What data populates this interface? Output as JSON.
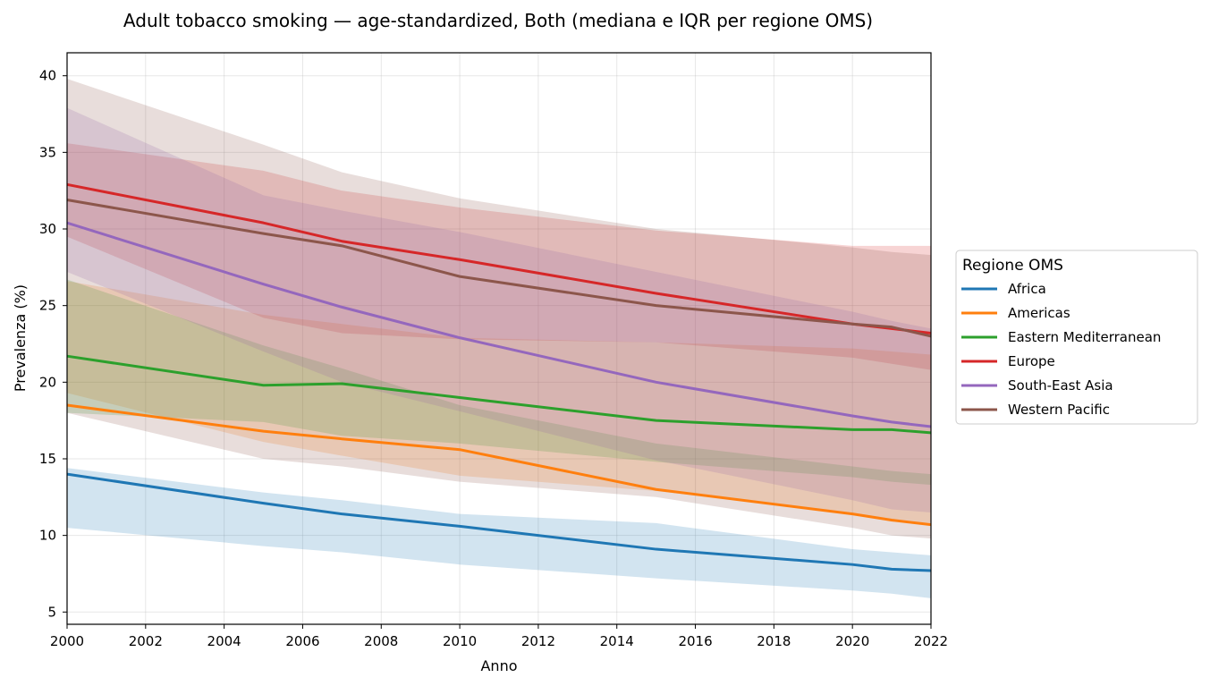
{
  "chart_data": {
    "type": "line",
    "title": "Adult tobacco smoking — age-standardized, Both (mediana e IQR per regione OMS)",
    "xlabel": "Anno",
    "ylabel": "Prevalenza (%)",
    "xlim": [
      2000,
      2022
    ],
    "ylim": [
      4.2,
      41.5
    ],
    "x_ticks": [
      "2000",
      "2002",
      "2004",
      "2006",
      "2008",
      "2010",
      "2012",
      "2014",
      "2016",
      "2018",
      "2020",
      "2022"
    ],
    "y_ticks": [
      "5",
      "10",
      "15",
      "20",
      "25",
      "30",
      "35",
      "40"
    ],
    "grid": true,
    "legend": {
      "title": "Regione OMS",
      "position": "right"
    },
    "x": [
      2000,
      2005,
      2007,
      2010,
      2015,
      2020,
      2021,
      2022
    ],
    "series": [
      {
        "name": "Africa",
        "color": "#1f77b4",
        "median": [
          14.0,
          12.1,
          11.4,
          10.6,
          9.1,
          8.1,
          7.8,
          7.7
        ],
        "q1": [
          10.5,
          9.3,
          8.9,
          8.1,
          7.2,
          6.4,
          6.2,
          5.9
        ],
        "q3": [
          14.4,
          12.8,
          12.3,
          11.4,
          10.8,
          9.1,
          8.9,
          8.7
        ]
      },
      {
        "name": "Americas",
        "color": "#ff7f0e",
        "median": [
          18.5,
          16.8,
          16.3,
          15.6,
          13.0,
          11.4,
          11.0,
          10.7
        ],
        "q1": [
          19.3,
          16.1,
          15.2,
          13.9,
          12.9,
          11.4,
          10.9,
          10.8
        ],
        "q3": [
          26.6,
          24.4,
          23.8,
          22.9,
          22.6,
          22.2,
          22.0,
          21.8
        ]
      },
      {
        "name": "Eastern Mediterranean",
        "color": "#2ca02c",
        "median": [
          21.7,
          19.8,
          19.9,
          19.0,
          17.5,
          16.9,
          16.9,
          16.7
        ],
        "q1": [
          18.0,
          17.4,
          16.5,
          16.0,
          14.8,
          13.8,
          13.5,
          13.3
        ],
        "q3": [
          26.7,
          22.4,
          20.9,
          18.5,
          16.0,
          14.5,
          14.2,
          14.0
        ]
      },
      {
        "name": "Europe",
        "color": "#d62728",
        "median": [
          32.9,
          30.4,
          29.2,
          28.0,
          25.8,
          23.8,
          23.5,
          23.2
        ],
        "q1": [
          29.5,
          24.2,
          23.2,
          22.8,
          22.6,
          21.6,
          21.2,
          20.8
        ],
        "q3": [
          35.6,
          33.8,
          32.5,
          31.4,
          29.9,
          28.9,
          28.9,
          28.9
        ]
      },
      {
        "name": "South-East Asia",
        "color": "#9467bd",
        "median": [
          30.4,
          26.4,
          24.9,
          22.9,
          20.0,
          17.8,
          17.4,
          17.1
        ],
        "q1": [
          27.2,
          22.0,
          20.0,
          18.1,
          14.9,
          12.3,
          11.7,
          11.5
        ],
        "q3": [
          37.9,
          32.2,
          31.2,
          29.8,
          27.2,
          24.6,
          24.0,
          23.5
        ]
      },
      {
        "name": "Western Pacific",
        "color": "#8c564b",
        "median": [
          31.9,
          29.7,
          28.9,
          26.9,
          25.0,
          23.8,
          23.6,
          23.0
        ],
        "q1": [
          18.0,
          15.0,
          14.5,
          13.5,
          12.5,
          10.5,
          10.0,
          9.8
        ],
        "q3": [
          39.8,
          35.5,
          33.7,
          32.0,
          30.0,
          28.8,
          28.5,
          28.3
        ]
      }
    ]
  }
}
